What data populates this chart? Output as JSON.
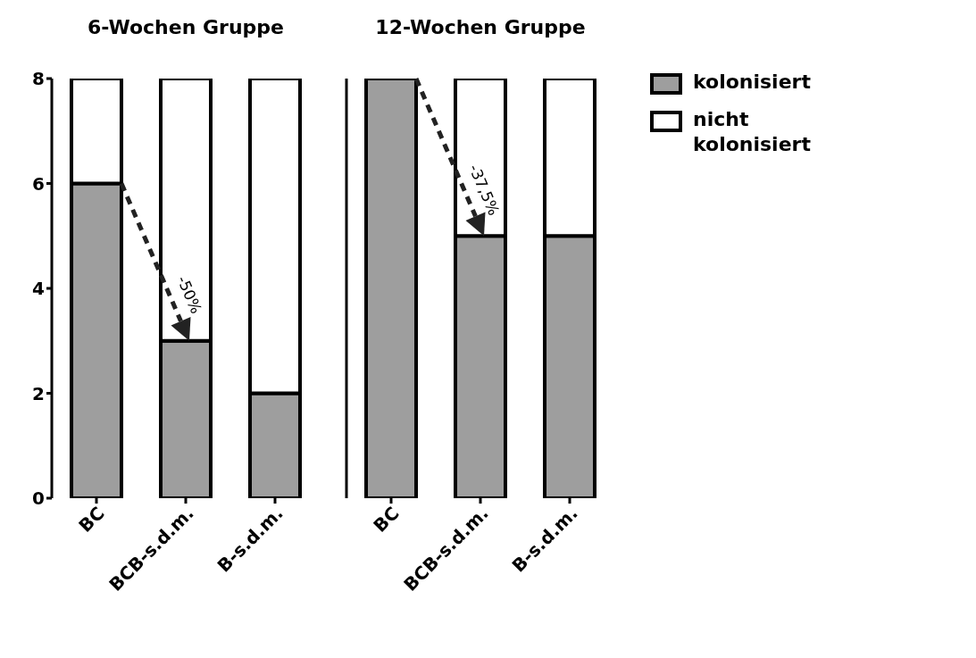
{
  "chart_data": [
    {
      "type": "bar",
      "title": "6-Wochen Gruppe",
      "categories": [
        "BC",
        "BCB-s.d.m.",
        "B-s.d.m."
      ],
      "stacked": true,
      "ylim": [
        0,
        8
      ],
      "yticks": [
        0,
        2,
        4,
        6,
        8
      ],
      "series": [
        {
          "color": "#9e9e9e",
          "values": [
            6,
            3,
            2
          ]
        },
        {
          "color": "#ffffff",
          "values": [
            2,
            5,
            6
          ]
        }
      ],
      "annotations": [
        {
          "text": "-50%",
          "x": "BCB-s.d.m.",
          "y": 3
        }
      ],
      "legend": false
    },
    {
      "type": "bar",
      "title": "12-Wochen Gruppe",
      "categories": [
        "BC",
        "BCB-s.d.m.",
        "B-s.d.m."
      ],
      "stacked": true,
      "ylim": [
        0,
        8
      ],
      "yticks": [
        0,
        2,
        4,
        6,
        8
      ],
      "tick_labels": "x",
      "series": [
        {
          "name": "kolonisiert",
          "color": "#9e9e9e",
          "values": [
            8,
            5,
            5
          ]
        },
        {
          "name": "nicht kolonisiert",
          "color": "#ffffff",
          "values": [
            0,
            3,
            3
          ]
        }
      ],
      "annotations": [
        {
          "text": "-37,5%",
          "x": "BCB-s.d.m.",
          "y": 5
        }
      ],
      "legend": "right"
    }
  ]
}
